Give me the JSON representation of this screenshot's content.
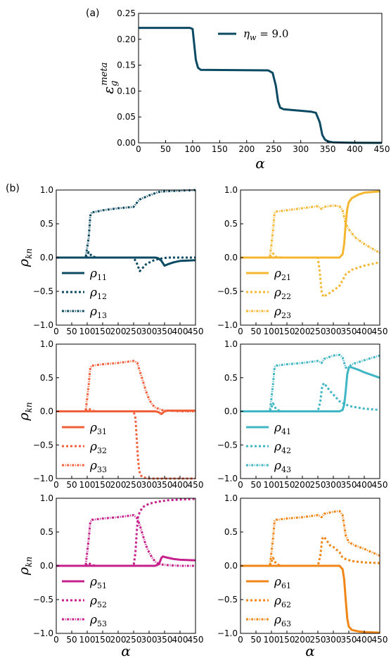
{
  "panel_labels": {
    "a": "(a)",
    "b": "(b)"
  },
  "colors": [
    "#0b4a62",
    "#f5b731",
    "#f0603b",
    "#40b6c5",
    "#c5208c",
    "#ef8617"
  ],
  "chart_data": [
    {
      "type": "line",
      "ylabel": "ε_g^meta",
      "xlabel": "α",
      "xlim": [
        0,
        450
      ],
      "ylim": [
        0,
        0.25
      ],
      "xticks": [
        "0",
        "50",
        "100",
        "150",
        "200",
        "250",
        "300",
        "350",
        "400",
        "450"
      ],
      "yticks": [
        "0.00",
        "0.05",
        "0.10",
        "0.15",
        "0.20",
        "0.25"
      ],
      "legend": {
        "position": "top-right",
        "label": "η_w = 9.0"
      },
      "series": [
        {
          "style": "solid",
          "color": "#0b4a62",
          "x": [
            0,
            95,
            100,
            103,
            106,
            110,
            115,
            240,
            248,
            254,
            258,
            262,
            268,
            320,
            328,
            335,
            340,
            345,
            350,
            360,
            380,
            400,
            450
          ],
          "y": [
            0.222,
            0.222,
            0.22,
            0.19,
            0.16,
            0.145,
            0.141,
            0.14,
            0.135,
            0.11,
            0.08,
            0.068,
            0.065,
            0.06,
            0.058,
            0.04,
            0.015,
            0.006,
            0.003,
            0.001,
            0.0005,
            0.0002,
            0.0
          ]
        }
      ]
    },
    {
      "type": "line",
      "ylabel": "ρ_kn",
      "xlabel": "",
      "xlim": [
        0,
        450
      ],
      "ylim": [
        -1,
        1
      ],
      "xticks": [
        "0",
        "50",
        "100",
        "150",
        "200",
        "250",
        "300",
        "350",
        "400",
        "450"
      ],
      "yticks": [
        "1.0",
        "0.5",
        "0.0",
        "−0.5",
        "−1.0"
      ],
      "legend": {
        "position": "bottom-left"
      },
      "series": [
        {
          "name": "ρ11",
          "sub": "11",
          "style": "solid",
          "color": "#0b4a62",
          "x": [
            0,
            320,
            330,
            340,
            350,
            360,
            380,
            400,
            450
          ],
          "y": [
            0,
            0,
            -0.01,
            -0.05,
            -0.12,
            -0.1,
            -0.07,
            -0.05,
            -0.04
          ]
        },
        {
          "name": "ρ12",
          "sub": "12",
          "style": "dot",
          "color": "#0b4a62",
          "x": [
            0,
            95,
            105,
            115,
            130,
            250,
            260,
            270,
            290,
            310,
            330,
            360,
            400,
            450
          ],
          "y": [
            0,
            0,
            0.08,
            0.02,
            0,
            0,
            -0.08,
            -0.2,
            -0.1,
            -0.05,
            -0.02,
            0,
            0,
            0
          ]
        },
        {
          "name": "ρ13",
          "sub": "13",
          "style": "dashdot",
          "color": "#0b4a62",
          "x": [
            0,
            95,
            105,
            110,
            115,
            130,
            150,
            200,
            250,
            262,
            270,
            300,
            330,
            350,
            400,
            450
          ],
          "y": [
            0,
            0,
            0.3,
            0.62,
            0.67,
            0.68,
            0.7,
            0.73,
            0.75,
            0.82,
            0.86,
            0.92,
            0.97,
            0.98,
            0.99,
            1.0
          ]
        }
      ]
    },
    {
      "type": "line",
      "ylabel": "",
      "xlabel": "",
      "xlim": [
        0,
        450
      ],
      "ylim": [
        -1,
        1
      ],
      "xticks": [
        "0",
        "50",
        "100",
        "150",
        "200",
        "250",
        "300",
        "350",
        "400",
        "450"
      ],
      "yticks": [
        "1.0",
        "0.5",
        "0.0",
        "−0.5",
        "−1.0"
      ],
      "legend": {
        "position": "bottom-left"
      },
      "series": [
        {
          "name": "ρ21",
          "sub": "21",
          "style": "solid",
          "color": "#f5b731",
          "x": [
            0,
            320,
            330,
            335,
            340,
            345,
            350,
            360,
            380,
            400,
            450
          ],
          "y": [
            0,
            0,
            0.05,
            0.2,
            0.5,
            0.72,
            0.82,
            0.88,
            0.93,
            0.96,
            0.98
          ]
        },
        {
          "name": "ρ22",
          "sub": "22",
          "style": "dot",
          "color": "#f5b731",
          "x": [
            0,
            95,
            105,
            115,
            130,
            250,
            256,
            262,
            268,
            290,
            320,
            340,
            360,
            400,
            450
          ],
          "y": [
            0,
            0,
            0.06,
            0.01,
            0,
            0,
            -0.2,
            -0.5,
            -0.58,
            -0.52,
            -0.42,
            -0.25,
            -0.18,
            -0.12,
            -0.07
          ]
        },
        {
          "name": "ρ23",
          "sub": "23",
          "style": "dashdot",
          "color": "#f5b731",
          "x": [
            0,
            95,
            105,
            110,
            115,
            150,
            200,
            250,
            262,
            270,
            300,
            320,
            330,
            340,
            350,
            370,
            400,
            450
          ],
          "y": [
            0,
            0,
            0.4,
            0.66,
            0.68,
            0.7,
            0.73,
            0.76,
            0.72,
            0.75,
            0.77,
            0.76,
            0.7,
            0.5,
            0.42,
            0.3,
            0.2,
            0.07
          ]
        }
      ]
    },
    {
      "type": "line",
      "ylabel": "ρ_kn",
      "xlabel": "",
      "xlim": [
        0,
        450
      ],
      "ylim": [
        -1,
        1
      ],
      "xticks": [
        "0",
        "50",
        "100",
        "150",
        "200",
        "250",
        "300",
        "350",
        "400",
        "450"
      ],
      "yticks": [
        "1.0",
        "0.5",
        "0.0",
        "−0.5",
        "−1.0"
      ],
      "legend": {
        "position": "bottom-left"
      },
      "series": [
        {
          "name": "ρ31",
          "sub": "31",
          "style": "solid",
          "color": "#f0603b",
          "x": [
            0,
            320,
            330,
            340,
            350,
            360,
            380,
            450
          ],
          "y": [
            0,
            0,
            -0.01,
            -0.04,
            0,
            0.01,
            0.01,
            0.01
          ]
        },
        {
          "name": "ρ32",
          "sub": "32",
          "style": "dot",
          "color": "#f0603b",
          "x": [
            0,
            95,
            105,
            115,
            130,
            250,
            256,
            260,
            264,
            268,
            272,
            280,
            300,
            350,
            450
          ],
          "y": [
            0,
            0,
            0.04,
            0.01,
            0,
            0,
            -0.1,
            -0.4,
            -0.7,
            -0.88,
            -0.95,
            -0.98,
            -1.0,
            -1.0,
            -1.0
          ]
        },
        {
          "name": "ρ33",
          "sub": "33",
          "style": "dashdot",
          "color": "#f0603b",
          "x": [
            0,
            95,
            105,
            110,
            115,
            150,
            200,
            250,
            262,
            270,
            280,
            290,
            300,
            310,
            320,
            330,
            340,
            360,
            400,
            450
          ],
          "y": [
            0,
            0,
            0.4,
            0.65,
            0.68,
            0.7,
            0.72,
            0.75,
            0.72,
            0.6,
            0.45,
            0.3,
            0.18,
            0.1,
            0.06,
            0.04,
            0.02,
            0.01,
            0.0,
            0.0
          ]
        }
      ]
    },
    {
      "type": "line",
      "ylabel": "",
      "xlabel": "",
      "xlim": [
        0,
        450
      ],
      "ylim": [
        -1,
        1
      ],
      "xticks": [
        "0",
        "50",
        "100",
        "150",
        "200",
        "250",
        "300",
        "350",
        "400",
        "450"
      ],
      "yticks": [
        "1.0",
        "0.5",
        "0.0",
        "−0.5",
        "−1.0"
      ],
      "legend": {
        "position": "bottom-left"
      },
      "series": [
        {
          "name": "ρ41",
          "sub": "41",
          "style": "solid",
          "color": "#40b6c5",
          "x": [
            0,
            320,
            330,
            335,
            340,
            345,
            350,
            355,
            380,
            400,
            450
          ],
          "y": [
            0,
            0,
            0.02,
            0.1,
            0.3,
            0.55,
            0.65,
            0.66,
            0.62,
            0.58,
            0.5
          ]
        },
        {
          "name": "ρ42",
          "sub": "42",
          "style": "dot",
          "color": "#40b6c5",
          "x": [
            0,
            95,
            105,
            115,
            130,
            250,
            258,
            264,
            270,
            290,
            320,
            340,
            360,
            400,
            450
          ],
          "y": [
            0,
            0,
            0.12,
            0.03,
            0,
            0,
            0.15,
            0.38,
            0.42,
            0.3,
            0.15,
            0.1,
            0.07,
            0.04,
            0.02
          ]
        },
        {
          "name": "ρ43",
          "sub": "43",
          "style": "dashdot",
          "color": "#40b6c5",
          "x": [
            0,
            95,
            105,
            110,
            115,
            150,
            200,
            250,
            262,
            270,
            300,
            320,
            330,
            340,
            350,
            360,
            400,
            450
          ],
          "y": [
            0,
            0,
            0.4,
            0.66,
            0.68,
            0.7,
            0.72,
            0.75,
            0.72,
            0.78,
            0.83,
            0.84,
            0.8,
            0.65,
            0.66,
            0.7,
            0.76,
            0.83
          ]
        }
      ]
    },
    {
      "type": "line",
      "ylabel": "ρ_kn",
      "xlabel": "α",
      "xlim": [
        0,
        450
      ],
      "ylim": [
        -1,
        1
      ],
      "xticks": [
        "0",
        "50",
        "100",
        "150",
        "200",
        "250",
        "300",
        "350",
        "400",
        "450"
      ],
      "yticks": [
        "1.0",
        "0.5",
        "0.0",
        "−0.5",
        "−1.0"
      ],
      "legend": {
        "position": "bottom-left"
      },
      "series": [
        {
          "name": "ρ51",
          "sub": "51",
          "style": "solid",
          "color": "#c5208c",
          "x": [
            0,
            320,
            330,
            335,
            340,
            345,
            350,
            360,
            380,
            400,
            450
          ],
          "y": [
            0,
            0,
            0.02,
            0.06,
            0.12,
            0.14,
            0.13,
            0.12,
            0.1,
            0.09,
            0.08
          ]
        },
        {
          "name": "ρ52",
          "sub": "52",
          "style": "dot",
          "color": "#c5208c",
          "x": [
            0,
            95,
            105,
            115,
            130,
            250,
            256,
            260,
            264,
            270,
            280,
            300,
            330,
            360,
            400,
            450
          ],
          "y": [
            0,
            0,
            0.04,
            0.01,
            0,
            0,
            0.2,
            0.5,
            0.72,
            0.8,
            0.87,
            0.92,
            0.95,
            0.97,
            0.98,
            0.99
          ]
        },
        {
          "name": "ρ53",
          "sub": "53",
          "style": "dashdot",
          "color": "#c5208c",
          "x": [
            0,
            95,
            105,
            110,
            115,
            150,
            200,
            250,
            262,
            270,
            280,
            290,
            300,
            310,
            320,
            330,
            340,
            360,
            400,
            450
          ],
          "y": [
            0,
            0,
            0.4,
            0.65,
            0.68,
            0.7,
            0.72,
            0.75,
            0.7,
            0.6,
            0.45,
            0.3,
            0.2,
            0.12,
            0.06,
            0.03,
            0.02,
            0.01,
            0,
            0
          ]
        }
      ]
    },
    {
      "type": "line",
      "ylabel": "",
      "xlabel": "α",
      "xlim": [
        0,
        450
      ],
      "ylim": [
        -1,
        1
      ],
      "xticks": [
        "0",
        "50",
        "100",
        "150",
        "200",
        "250",
        "300",
        "350",
        "400",
        "450"
      ],
      "yticks": [
        "1.0",
        "0.5",
        "0.0",
        "−0.5",
        "−1.0"
      ],
      "legend": {
        "position": "bottom-left"
      },
      "series": [
        {
          "name": "ρ61",
          "sub": "61",
          "style": "solid",
          "color": "#ef8617",
          "x": [
            0,
            320,
            330,
            335,
            340,
            345,
            350,
            360,
            380,
            400,
            450
          ],
          "y": [
            0,
            0,
            -0.05,
            -0.2,
            -0.5,
            -0.78,
            -0.9,
            -0.95,
            -0.97,
            -0.98,
            -0.99
          ]
        },
        {
          "name": "ρ62",
          "sub": "62",
          "style": "dot",
          "color": "#ef8617",
          "x": [
            0,
            95,
            105,
            115,
            130,
            250,
            258,
            264,
            270,
            290,
            300,
            320,
            330,
            340,
            360,
            400,
            450
          ],
          "y": [
            0,
            0,
            0.12,
            0.03,
            0,
            0,
            0.15,
            0.4,
            0.43,
            0.3,
            0.28,
            0.2,
            0.12,
            0.1,
            0.07,
            0.05,
            0.04
          ]
        },
        {
          "name": "ρ63",
          "sub": "63",
          "style": "dashdot",
          "color": "#ef8617",
          "x": [
            0,
            95,
            105,
            110,
            115,
            150,
            200,
            250,
            262,
            270,
            300,
            320,
            330,
            340,
            350,
            370,
            400,
            450
          ],
          "y": [
            0,
            0,
            0.4,
            0.66,
            0.68,
            0.7,
            0.72,
            0.75,
            0.72,
            0.77,
            0.8,
            0.81,
            0.75,
            0.45,
            0.35,
            0.3,
            0.25,
            0.15
          ]
        }
      ]
    }
  ]
}
